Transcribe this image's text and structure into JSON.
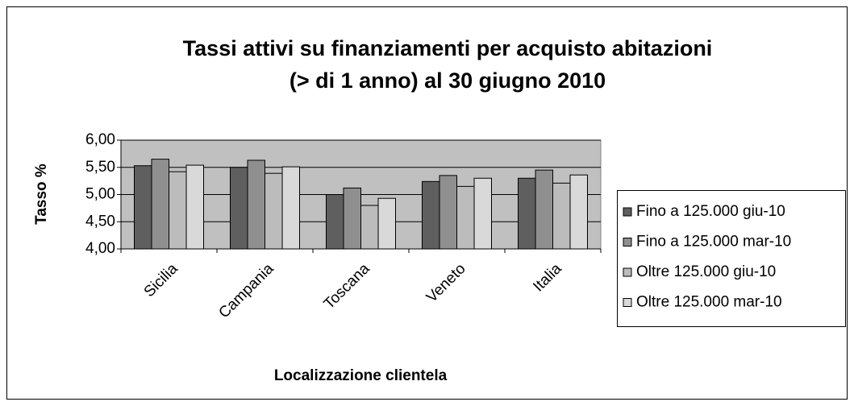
{
  "chart_data": {
    "type": "bar",
    "title": [
      "Tassi attivi su finanziamenti per acquisto abitazioni",
      "(> di 1 anno) al 30 giugno 2010"
    ],
    "x_label": "Localizzazione clientela",
    "y_label": "Tasso %",
    "categories": [
      "Sicilia",
      "Campania",
      "Toscana",
      "Veneto",
      "Italia"
    ],
    "series": [
      {
        "name": "Fino a 125.000 giu-10",
        "color": "#5f5f5f",
        "values": [
          5.53,
          5.5,
          5.0,
          5.24,
          5.3
        ]
      },
      {
        "name": "Fino a 125.000 mar-10",
        "color": "#8f8f8f",
        "values": [
          5.65,
          5.63,
          5.12,
          5.35,
          5.45
        ]
      },
      {
        "name": "Oltre 125.000 giu-10",
        "color": "#bcbcbc",
        "values": [
          5.42,
          5.39,
          4.8,
          5.15,
          5.21
        ]
      },
      {
        "name": "Oltre 125.000 mar-10",
        "color": "#d9d9d9",
        "values": [
          5.54,
          5.51,
          4.93,
          5.3,
          5.36
        ]
      }
    ],
    "ylim": [
      4,
      6
    ],
    "yticks": [
      {
        "value": 4,
        "label": "4,00"
      },
      {
        "value": 4.5,
        "label": "4,50"
      },
      {
        "value": 5,
        "label": "5,00"
      },
      {
        "value": 5.5,
        "label": "5,50"
      },
      {
        "value": 6,
        "label": "6,00"
      }
    ],
    "grid": true,
    "plot_background": "#c0c0c0",
    "legend": "right"
  }
}
